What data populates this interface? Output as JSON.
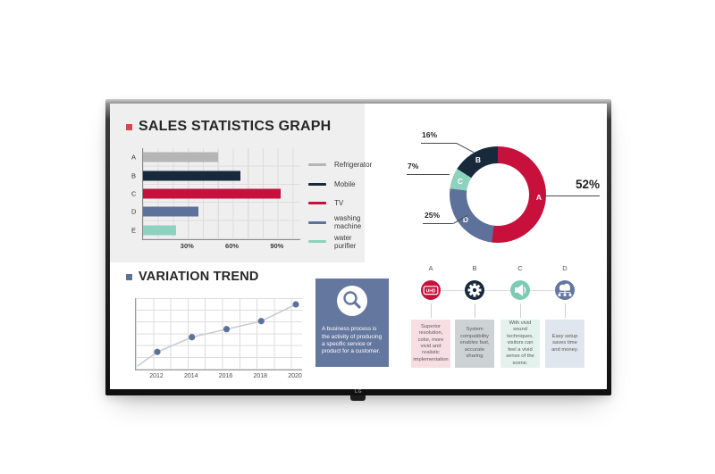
{
  "device": {
    "brand_logo": "LG"
  },
  "slide": {
    "sales_title": "SALES STATISTICS GRAPH",
    "trend_title": "VARIATION TREND",
    "info_box": {
      "text": "A business process is the activity of producing a specific service or product for a customer.",
      "icon": "magnifier-icon",
      "background": "#64779f"
    },
    "process": {
      "steps": [
        {
          "label": "A",
          "icon": "uhd-badge-icon",
          "icon_label": "UHD",
          "circle_color": "#c8103c",
          "box_color": "#f7dee3",
          "text": "Superior resolution, color, more vivid and realistic implementation"
        },
        {
          "label": "B",
          "icon": "gear-icon",
          "circle_color": "#17293a",
          "box_color": "#cdd3d5",
          "text": "System compatibility enables fast, accurate sharing"
        },
        {
          "label": "C",
          "icon": "speaker-icon",
          "circle_color": "#7ecbb4",
          "box_color": "#e4f2ee",
          "text": "With vivid sound techniques, visitors can feel a vivid sense of the scene."
        },
        {
          "label": "D",
          "icon": "cloud-network-icon",
          "circle_color": "#64779f",
          "box_color": "#e0e6ed",
          "text": "Easy setup saves time and money."
        }
      ]
    }
  },
  "chart_data": [
    {
      "type": "bar",
      "orientation": "horizontal",
      "title": "SALES STATISTICS GRAPH",
      "categories": [
        "A",
        "B",
        "C",
        "D",
        "E"
      ],
      "values": [
        50,
        65,
        92,
        37,
        22
      ],
      "unit": "%",
      "xlim": [
        0,
        105
      ],
      "ticks": [
        30,
        60,
        90
      ],
      "tick_labels": [
        "30%",
        "60%",
        "90%"
      ],
      "colors": [
        "#b5b5b5",
        "#17293a",
        "#c8103c",
        "#5d729b",
        "#8ed1bc"
      ],
      "legend": [
        "Refrigerator",
        "Mobile",
        "TV",
        "washing machine",
        "water purifier"
      ],
      "legend_position": "right",
      "grid": true
    },
    {
      "type": "pie",
      "subtype": "donut",
      "direction": "clockwise",
      "start_angle_deg": 0,
      "segments": [
        {
          "label": "A",
          "value": 52,
          "pct_label": "52%",
          "color": "#c8103c"
        },
        {
          "label": "D",
          "value": 25,
          "pct_label": "25%",
          "color": "#5d729b"
        },
        {
          "label": "C",
          "value": 7,
          "pct_label": "7%",
          "color": "#8ed1bc"
        },
        {
          "label": "B",
          "value": 16,
          "pct_label": "16%",
          "color": "#17293a"
        }
      ]
    },
    {
      "type": "line",
      "title": "VARIATION TREND",
      "x": [
        2012,
        2014,
        2016,
        2018,
        2020
      ],
      "values": [
        21,
        43,
        55,
        67,
        92
      ],
      "ylim": [
        0,
        100
      ],
      "line_color": "#c9ccd1",
      "point_color": "#5d729b",
      "grid": true
    }
  ]
}
